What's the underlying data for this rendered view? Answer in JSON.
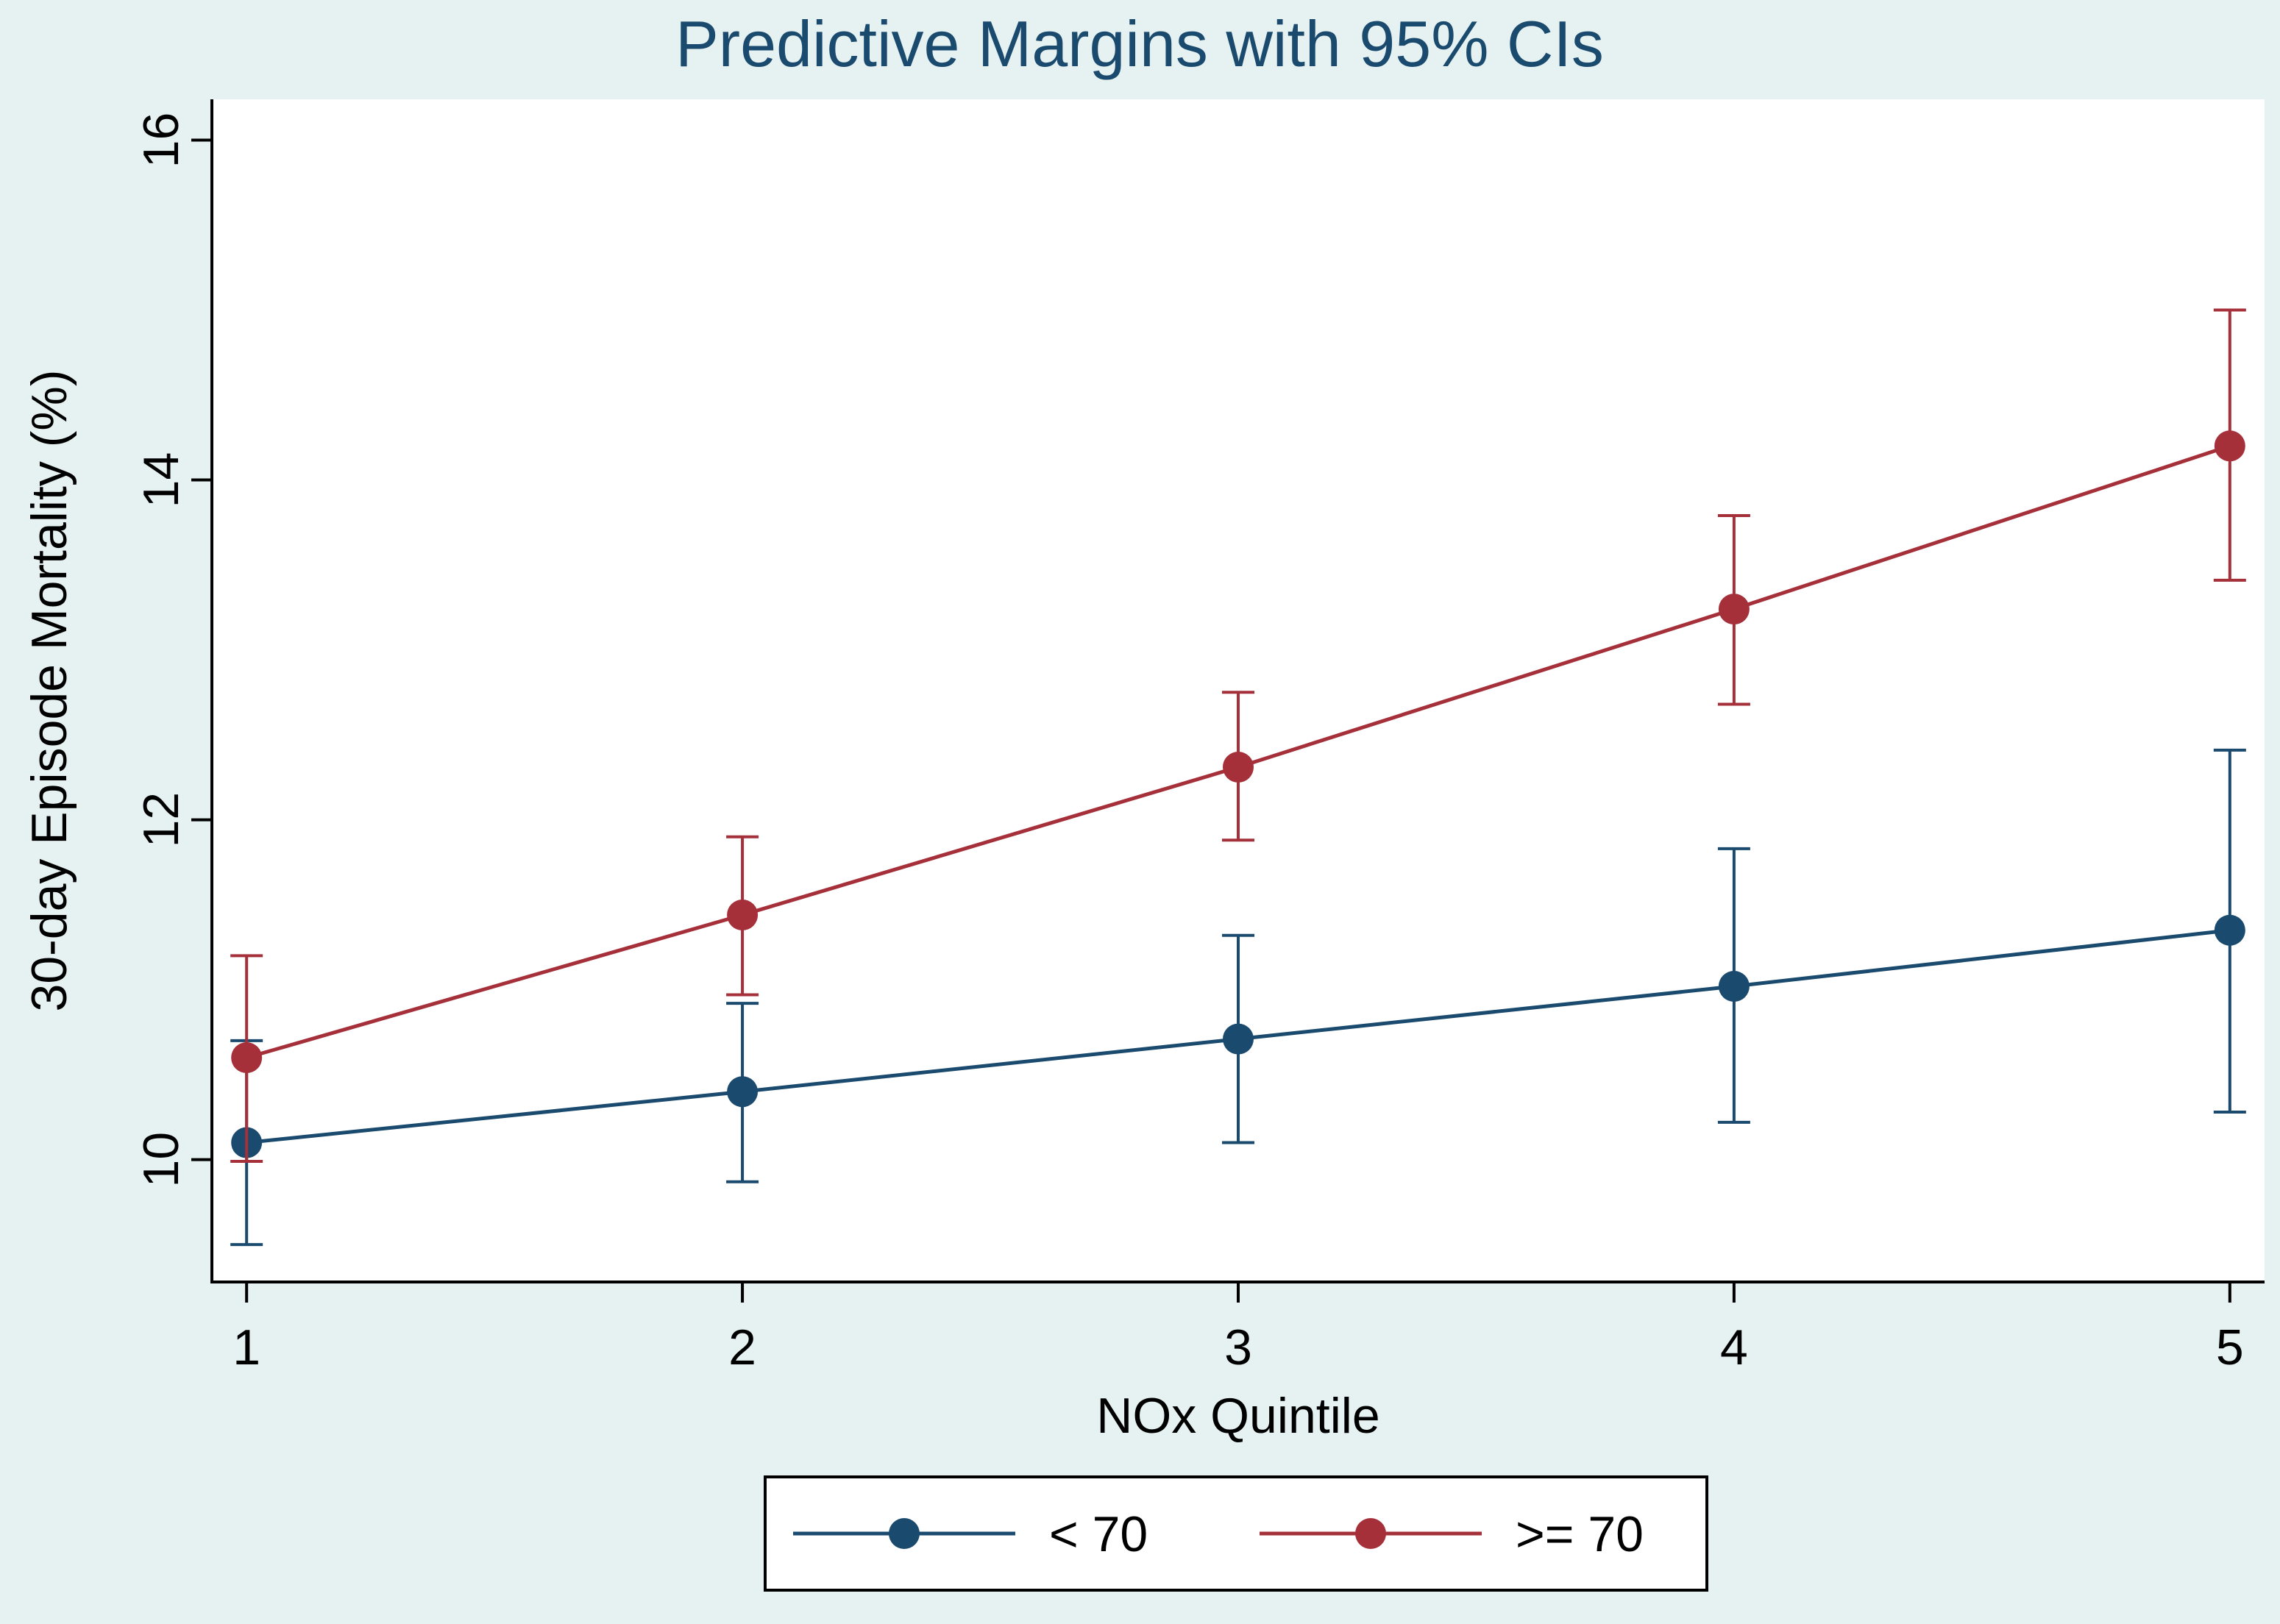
{
  "chart_data": {
    "type": "line",
    "title": "Predictive Margins with 95% CIs",
    "xlabel": "NOx Quintile",
    "ylabel": "30-day Episode Mortality (%)",
    "x": [
      1,
      2,
      3,
      4,
      5
    ],
    "x_tick_labels": [
      "1",
      "2",
      "3",
      "4",
      "5"
    ],
    "xlim": [
      0.93,
      5.07
    ],
    "y_ticks": [
      10,
      12,
      14,
      16
    ],
    "y_tick_labels": [
      "10",
      "12",
      "14",
      "16"
    ],
    "ylim": [
      9.28,
      16.24
    ],
    "grid": false,
    "legend_position": "bottom-center",
    "series": [
      {
        "name": "< 70",
        "color": "#1a4a6e",
        "values": [
          10.1,
          10.4,
          10.71,
          11.02,
          11.35
        ],
        "ci_lower": [
          9.5,
          9.87,
          10.1,
          10.22,
          10.28
        ],
        "ci_upper": [
          10.7,
          10.92,
          11.32,
          11.83,
          12.41
        ]
      },
      {
        "name": ">= 70",
        "color": "#a5303a",
        "values": [
          10.6,
          11.44,
          12.31,
          13.24,
          14.2
        ],
        "ci_lower": [
          9.99,
          10.97,
          11.88,
          12.68,
          13.41
        ],
        "ci_upper": [
          11.2,
          11.9,
          12.75,
          13.79,
          15
        ]
      }
    ]
  },
  "colors": {
    "outer_background": "#e6f1f1",
    "plot_background": "#ffffff",
    "title_color": "#1a4a6e",
    "axis_color": "#000000"
  }
}
